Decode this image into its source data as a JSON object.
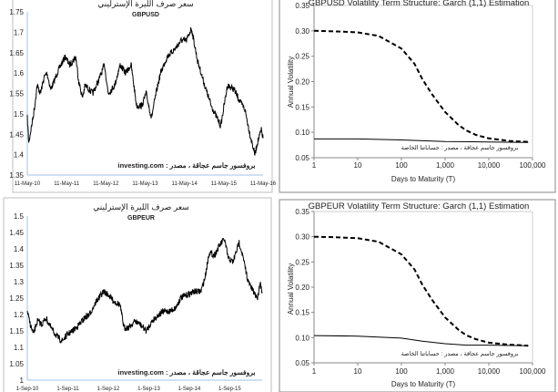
{
  "chart_data": [
    {
      "type": "line",
      "title": "سعر صرف الليرة الإسترليني",
      "subtitle": "GBPUSD",
      "annotation": "investing.com : بروفسور جاسم عجاقة ، مصدر",
      "xlabel": "",
      "ylabel": "",
      "ylim": [
        1.35,
        1.75
      ],
      "yticks": [
        "1.35",
        "1.4",
        "1.45",
        "1.5",
        "1.55",
        "1.6",
        "1.65",
        "1.7",
        "1.75"
      ],
      "xlim": [
        "2010-05-11",
        "2016-05-11"
      ],
      "xticks": [
        "11-May-10",
        "11-May-11",
        "11-May-12",
        "11-May-13",
        "11-May-14",
        "11-May-15",
        "11-May-16"
      ],
      "grid": false,
      "series": [
        {
          "x": [
            "2010-05-11",
            "2010-05-25",
            "2010-07-15",
            "2010-08-10",
            "2010-09-10",
            "2010-10-15",
            "2010-11-10",
            "2010-12-15",
            "2011-01-15",
            "2011-03-01",
            "2011-04-28",
            "2011-06-10",
            "2011-08-05",
            "2011-09-01",
            "2011-10-05",
            "2011-11-01",
            "2012-01-10",
            "2012-03-01",
            "2012-04-28",
            "2012-06-01",
            "2012-08-01",
            "2012-09-20",
            "2012-11-10",
            "2012-12-31",
            "2013-02-20",
            "2013-04-10",
            "2013-05-20",
            "2013-07-08",
            "2013-08-20",
            "2013-10-01",
            "2013-12-01",
            "2014-02-15",
            "2014-04-10",
            "2014-05-30",
            "2014-07-15",
            "2014-09-10",
            "2014-11-15",
            "2015-01-15",
            "2015-03-10",
            "2015-04-13",
            "2015-06-15",
            "2015-08-15",
            "2015-10-10",
            "2015-11-25",
            "2016-01-10",
            "2016-02-25",
            "2016-03-20",
            "2016-04-25",
            "2016-05-11"
          ],
          "y": [
            1.49,
            1.43,
            1.51,
            1.57,
            1.55,
            1.59,
            1.6,
            1.56,
            1.58,
            1.61,
            1.64,
            1.62,
            1.64,
            1.58,
            1.54,
            1.57,
            1.55,
            1.58,
            1.62,
            1.55,
            1.57,
            1.62,
            1.6,
            1.62,
            1.52,
            1.52,
            1.55,
            1.49,
            1.55,
            1.6,
            1.64,
            1.66,
            1.68,
            1.68,
            1.71,
            1.63,
            1.57,
            1.52,
            1.49,
            1.47,
            1.57,
            1.56,
            1.53,
            1.51,
            1.45,
            1.4,
            1.43,
            1.46,
            1.44
          ]
        }
      ]
    },
    {
      "type": "line",
      "title": "GBPUSD Volatility Term Structure:  Garch (1,1) Estimation",
      "annotation": "بروفسور جاسم عجاقة ، مصدر : حساباتنا الخاصة",
      "xlabel": "Days to Maturity  (T)",
      "ylabel": "Annual Volatility",
      "xscale": "log",
      "xlim": [
        1,
        100000
      ],
      "ylim": [
        0.05,
        0.35
      ],
      "xticks": [
        "1",
        "10",
        "100",
        "1,000",
        "10,000",
        "100,000"
      ],
      "yticks": [
        "0.05",
        "0.10",
        "0.15",
        "0.20",
        "0.25",
        "0.30",
        "0.35"
      ],
      "grid": false,
      "series": [
        {
          "style": "dashed",
          "x": [
            1,
            3,
            10,
            30,
            100,
            200,
            300,
            500,
            1000,
            2000,
            3000,
            5000,
            10000,
            30000,
            80000
          ],
          "y": [
            0.3,
            0.299,
            0.297,
            0.29,
            0.265,
            0.235,
            0.205,
            0.175,
            0.14,
            0.115,
            0.104,
            0.095,
            0.088,
            0.083,
            0.081
          ]
        },
        {
          "style": "solid",
          "x": [
            1,
            10,
            100,
            1000,
            10000,
            80000
          ],
          "y": [
            0.087,
            0.087,
            0.085,
            0.082,
            0.081,
            0.08
          ]
        }
      ]
    },
    {
      "type": "line",
      "title": "سعر صرف الليرة الإسترليني",
      "subtitle": "GBPEUR",
      "annotation": "investing.com : بروفسور جاسم عجاقة ، مصدر",
      "xlabel": "",
      "ylabel": "",
      "ylim": [
        1.0,
        1.5
      ],
      "yticks": [
        "1",
        "1.05",
        "1.1",
        "1.15",
        "1.2",
        "1.25",
        "1.3",
        "1.35",
        "1.4",
        "1.45",
        "1.5"
      ],
      "xlim": [
        "2010-09-01",
        "2016-06-20"
      ],
      "xticks": [
        "1-Sep-10",
        "1-Sep-11",
        "1-Sep-12",
        "1-Sep-13",
        "1-Sep-14",
        "1-Sep-15"
      ],
      "grid": false,
      "series": [
        {
          "x": [
            "2010-09-01",
            "2010-09-20",
            "2010-10-25",
            "2010-12-01",
            "2011-01-10",
            "2011-02-15",
            "2011-04-01",
            "2011-06-01",
            "2011-07-15",
            "2011-09-01",
            "2011-10-15",
            "2011-12-15",
            "2012-02-01",
            "2012-03-15",
            "2012-05-15",
            "2012-07-20",
            "2012-09-01",
            "2012-10-20",
            "2012-12-15",
            "2013-01-20",
            "2013-03-01",
            "2013-05-01",
            "2013-06-15",
            "2013-08-10",
            "2013-10-01",
            "2013-12-01",
            "2014-01-20",
            "2014-03-10",
            "2014-05-01",
            "2014-06-15",
            "2014-08-15",
            "2014-10-15",
            "2014-12-15",
            "2015-01-20",
            "2015-03-01",
            "2015-04-15",
            "2015-06-01",
            "2015-07-15",
            "2015-08-20",
            "2015-10-01",
            "2015-11-25",
            "2015-12-20",
            "2016-02-15",
            "2016-04-01",
            "2016-05-10",
            "2016-06-01",
            "2016-06-20"
          ],
          "y": [
            1.21,
            1.18,
            1.14,
            1.18,
            1.17,
            1.19,
            1.16,
            1.13,
            1.12,
            1.14,
            1.15,
            1.17,
            1.19,
            1.2,
            1.24,
            1.27,
            1.26,
            1.24,
            1.23,
            1.16,
            1.16,
            1.18,
            1.17,
            1.15,
            1.18,
            1.2,
            1.21,
            1.21,
            1.22,
            1.25,
            1.26,
            1.27,
            1.27,
            1.31,
            1.39,
            1.38,
            1.41,
            1.43,
            1.37,
            1.36,
            1.42,
            1.39,
            1.3,
            1.27,
            1.25,
            1.3,
            1.27
          ]
        }
      ]
    },
    {
      "type": "line",
      "title": "GBPEUR Volatility Term Structure:  Garch (1,1) Estimation",
      "annotation": "بروفسور جاسم عجاقة ، مصدر : حساباتنا الخاصة",
      "xlabel": "Days to Maturity  (T)",
      "ylabel": "Annual Volatility",
      "xscale": "log",
      "xlim": [
        1,
        100000
      ],
      "ylim": [
        0.05,
        0.35
      ],
      "xticks": [
        "1",
        "10",
        "100",
        "1,000",
        "10,000",
        "100,000"
      ],
      "yticks": [
        "0.05",
        "0.10",
        "0.15",
        "0.20",
        "0.25",
        "0.30",
        "0.35"
      ],
      "grid": false,
      "series": [
        {
          "style": "dashed",
          "x": [
            1,
            3,
            10,
            30,
            100,
            200,
            300,
            500,
            1000,
            2000,
            3000,
            5000,
            10000,
            30000,
            80000
          ],
          "y": [
            0.3,
            0.299,
            0.297,
            0.29,
            0.265,
            0.235,
            0.205,
            0.175,
            0.14,
            0.116,
            0.105,
            0.097,
            0.09,
            0.086,
            0.084
          ]
        },
        {
          "style": "solid",
          "x": [
            1,
            10,
            100,
            300,
            1000,
            3000,
            10000,
            80000
          ],
          "y": [
            0.104,
            0.103,
            0.099,
            0.093,
            0.088,
            0.085,
            0.085,
            0.084
          ]
        }
      ]
    }
  ]
}
